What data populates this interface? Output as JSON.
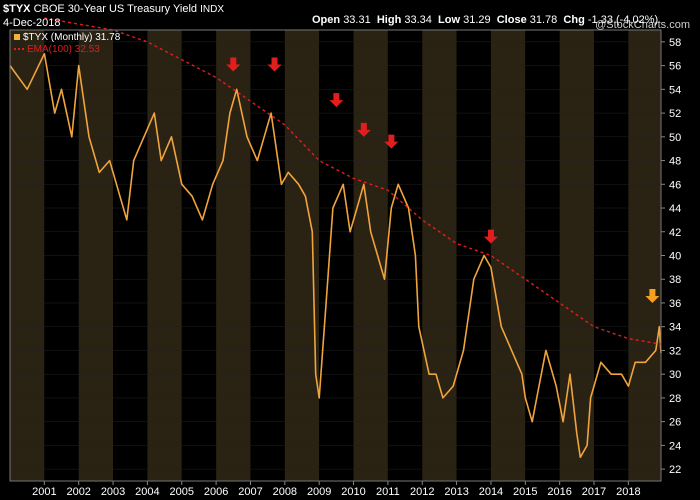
{
  "header": {
    "symbol": "$TYX",
    "title": "CBOE 30-Year US Treasury Yield",
    "exchange": "INDX",
    "date": "4-Dec-2018",
    "watermark": "@StockCharts.com",
    "quote": {
      "open_label": "Open",
      "open": "33.31",
      "high_label": "High",
      "high": "33.34",
      "low_label": "Low",
      "low": "31.29",
      "close_label": "Close",
      "close": "31.78",
      "chg_label": "Chg",
      "chg": "-1.33 (-4.02%)"
    }
  },
  "legend": [
    {
      "label": "$TYX (Monthly) 31.78",
      "color": "#f0b43c"
    },
    {
      "label": "EMA(100) 32.53",
      "color": "#e01e1e"
    }
  ],
  "colors": {
    "background": "#000000",
    "band_dark": "#000000",
    "band_light": "#2a2213",
    "price": "#f0a43c",
    "ema": "#e01e1e",
    "arrow_red": "#e01e1e",
    "arrow_orange": "#f5a021",
    "text": "#ffffff"
  },
  "chart_data": {
    "type": "line",
    "series": [
      {
        "name": "$TYX (Monthly) 31.78",
        "x": [
          2000.0,
          2000.5,
          2001.0,
          2001.3,
          2001.5,
          2001.8,
          2002.0,
          2002.3,
          2002.6,
          2002.9,
          2003.1,
          2003.4,
          2003.6,
          2003.9,
          2004.2,
          2004.4,
          2004.7,
          2005.0,
          2005.3,
          2005.6,
          2005.9,
          2006.2,
          2006.4,
          2006.6,
          2006.9,
          2007.2,
          2007.4,
          2007.6,
          2007.9,
          2008.1,
          2008.4,
          2008.6,
          2008.8,
          2008.9,
          2009.0,
          2009.2,
          2009.4,
          2009.7,
          2009.9,
          2010.1,
          2010.3,
          2010.5,
          2010.7,
          2010.9,
          2011.1,
          2011.3,
          2011.6,
          2011.8,
          2011.9,
          2012.2,
          2012.4,
          2012.6,
          2012.9,
          2013.2,
          2013.5,
          2013.8,
          2014.0,
          2014.3,
          2014.6,
          2014.9,
          2015.0,
          2015.2,
          2015.4,
          2015.6,
          2015.9,
          2016.1,
          2016.3,
          2016.5,
          2016.6,
          2016.8,
          2016.9,
          2017.2,
          2017.5,
          2017.8,
          2018.0,
          2018.2,
          2018.5,
          2018.8,
          2018.9,
          2018.95
        ],
        "y": [
          56,
          54,
          57,
          52,
          54,
          50,
          56,
          50,
          47,
          48,
          46,
          43,
          48,
          50,
          52,
          48,
          50,
          46,
          45,
          43,
          46,
          48,
          52,
          54,
          50,
          48,
          50,
          52,
          46,
          47,
          46,
          45,
          42,
          30,
          28,
          36,
          44,
          46,
          42,
          44,
          46,
          42,
          40,
          38,
          44,
          46,
          44,
          40,
          34,
          30,
          30,
          28,
          29,
          32,
          38,
          40,
          39,
          34,
          32,
          30,
          28,
          26,
          29,
          32,
          29,
          26,
          30,
          25,
          23,
          24,
          28,
          31,
          30,
          30,
          29,
          31,
          31,
          32,
          34,
          31.78
        ]
      },
      {
        "name": "EMA(100) 32.53",
        "x": [
          2001.0,
          2002.0,
          2003.0,
          2004.0,
          2005.0,
          2006.0,
          2006.5,
          2007.0,
          2008.0,
          2009.0,
          2010.0,
          2011.0,
          2012.0,
          2013.0,
          2014.0,
          2015.0,
          2016.0,
          2017.0,
          2018.0,
          2018.95
        ],
        "y": [
          60,
          59.5,
          59,
          58,
          56.5,
          55,
          54,
          53,
          51,
          48,
          46.5,
          45.5,
          43,
          41,
          40,
          38,
          36,
          34,
          33,
          32.53
        ]
      }
    ],
    "xlim": [
      2000.0,
      2018.95
    ],
    "ylim": [
      21,
      59
    ],
    "yticks": [
      22,
      24,
      26,
      28,
      30,
      32,
      34,
      36,
      38,
      40,
      42,
      44,
      46,
      48,
      50,
      52,
      54,
      56,
      58
    ],
    "xticks": [
      2001,
      2002,
      2003,
      2004,
      2005,
      2006,
      2007,
      2008,
      2009,
      2010,
      2011,
      2012,
      2013,
      2014,
      2015,
      2016,
      2017,
      2018
    ],
    "xtick_labels": [
      "2001",
      "2002",
      "2003",
      "2004",
      "2005",
      "2006",
      "2007",
      "2008",
      "2009",
      "2010",
      "2011",
      "2012",
      "2013",
      "2014",
      "2015",
      "2016",
      "2017",
      "2018"
    ],
    "annotations": [
      {
        "type": "arrow",
        "x": 2006.5,
        "y": 55.5,
        "color": "red"
      },
      {
        "type": "arrow",
        "x": 2007.7,
        "y": 55.5,
        "color": "red"
      },
      {
        "type": "arrow",
        "x": 2009.5,
        "y": 52.5,
        "color": "red"
      },
      {
        "type": "arrow",
        "x": 2010.3,
        "y": 50.0,
        "color": "red"
      },
      {
        "type": "arrow",
        "x": 2011.1,
        "y": 49.0,
        "color": "red"
      },
      {
        "type": "arrow",
        "x": 2014.0,
        "y": 41.0,
        "color": "red"
      },
      {
        "type": "arrow",
        "x": 2018.7,
        "y": 36.0,
        "color": "orange"
      }
    ]
  }
}
